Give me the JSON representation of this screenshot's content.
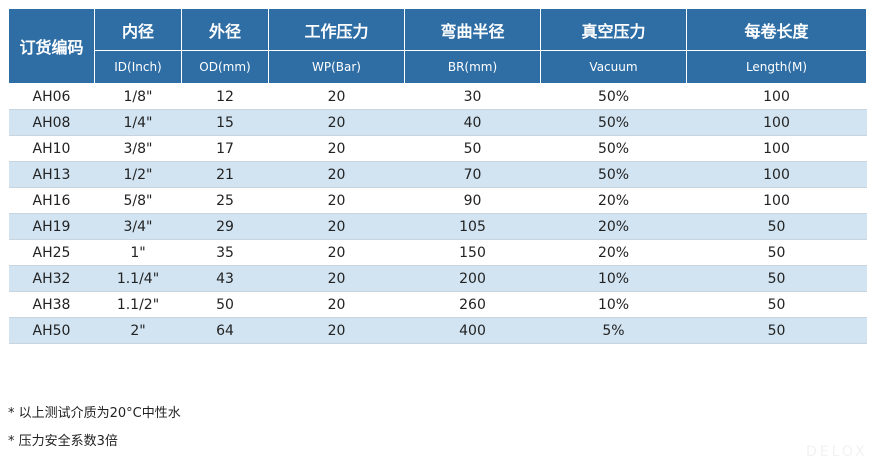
{
  "headers": [
    {
      "cn": "订货编码",
      "en": ""
    },
    {
      "cn": "内径",
      "en": "ID(Inch)"
    },
    {
      "cn": "外径",
      "en": "OD(mm)"
    },
    {
      "cn": "工作压力",
      "en": "WP(Bar)"
    },
    {
      "cn": "弯曲半径",
      "en": "BR(mm)"
    },
    {
      "cn": "真空压力",
      "en": "Vacuum"
    },
    {
      "cn": "每卷长度",
      "en": "Length(M)"
    }
  ],
  "rows": [
    [
      "AH06",
      "1/8\"",
      "12",
      "20",
      "30",
      "50%",
      "100"
    ],
    [
      "AH08",
      "1/4\"",
      "15",
      "20",
      "40",
      "50%",
      "100"
    ],
    [
      "AH10",
      "3/8\"",
      "17",
      "20",
      "50",
      "50%",
      "100"
    ],
    [
      "AH13",
      "1/2\"",
      "21",
      "20",
      "70",
      "50%",
      "100"
    ],
    [
      "AH16",
      "5/8\"",
      "25",
      "20",
      "90",
      "20%",
      "100"
    ],
    [
      "AH19",
      "3/4\"",
      "29",
      "20",
      "105",
      "20%",
      "50"
    ],
    [
      "AH25",
      "1\"",
      "35",
      "20",
      "150",
      "20%",
      "50"
    ],
    [
      "AH32",
      "1.1/4\"",
      "43",
      "20",
      "200",
      "10%",
      "50"
    ],
    [
      "AH38",
      "1.1/2\"",
      "50",
      "20",
      "260",
      "10%",
      "50"
    ],
    [
      "AH50",
      "2\"",
      "64",
      "20",
      "400",
      "5%",
      "50"
    ]
  ],
  "notes": [
    "* 以上测试介质为20°C中性水",
    "* 压力安全系数3倍"
  ],
  "watermark": "DELOX",
  "colors": {
    "header": "#2f6ea5",
    "stripe": "#d2e4f2"
  }
}
